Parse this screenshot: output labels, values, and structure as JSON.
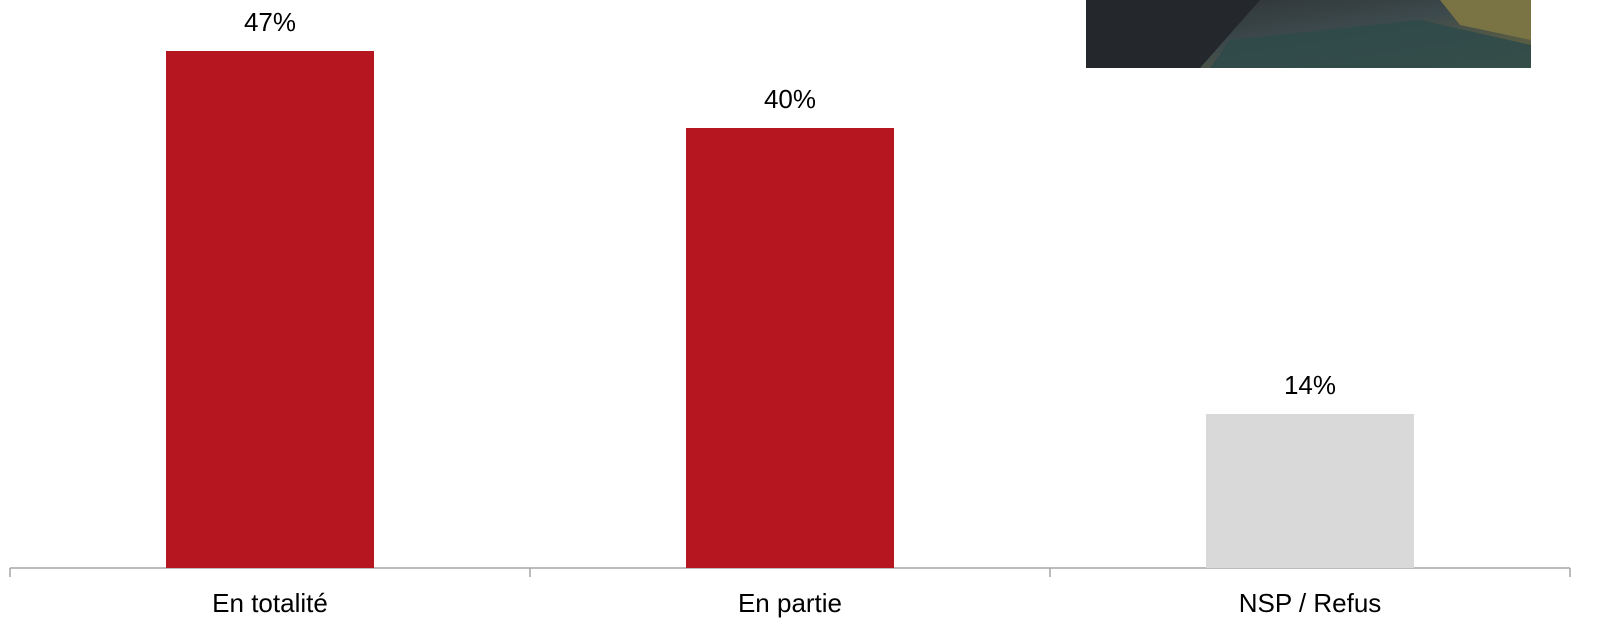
{
  "chart_data": {
    "type": "bar",
    "categories": [
      "En totalité",
      "En partie",
      "NSP / Refus"
    ],
    "values": [
      47,
      40,
      14
    ],
    "value_labels": [
      "47%",
      "40%",
      "14%"
    ],
    "colors": [
      "#b5161f",
      "#b5161f",
      "#d9d9d9"
    ]
  }
}
